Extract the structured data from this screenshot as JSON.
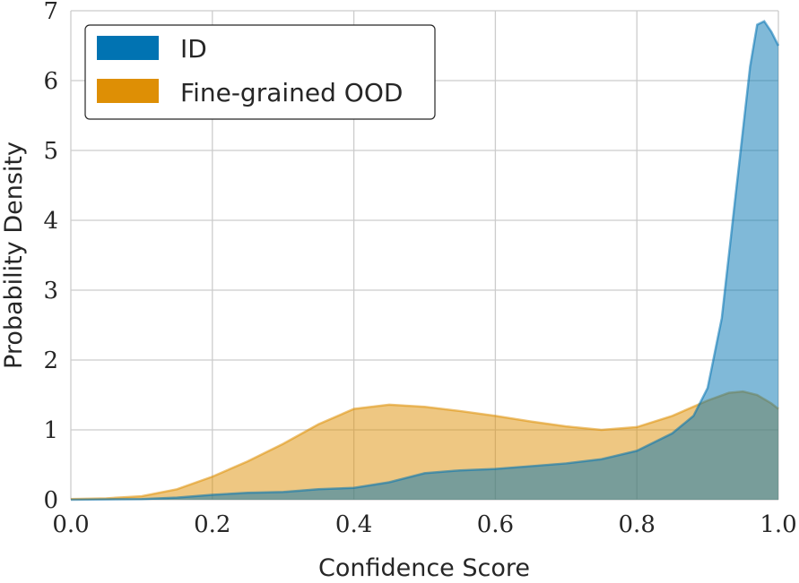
{
  "chart_data": {
    "type": "area",
    "title": "",
    "xlabel": "Confidence Score",
    "ylabel": "Probability Density",
    "xlim": [
      0.0,
      1.0
    ],
    "ylim": [
      0,
      7
    ],
    "xticks": [
      "0.0",
      "0.2",
      "0.4",
      "0.6",
      "0.8",
      "1.0"
    ],
    "yticks": [
      "0",
      "1",
      "2",
      "3",
      "4",
      "5",
      "6",
      "7"
    ],
    "grid": true,
    "legend_position": "top-left",
    "series": [
      {
        "name": "Fine-grained OOD",
        "color": "#de8f05",
        "x": [
          0.0,
          0.05,
          0.1,
          0.15,
          0.2,
          0.25,
          0.3,
          0.35,
          0.4,
          0.45,
          0.5,
          0.55,
          0.6,
          0.65,
          0.7,
          0.75,
          0.8,
          0.85,
          0.9,
          0.93,
          0.95,
          0.97,
          0.99,
          1.0
        ],
        "y": [
          0.01,
          0.02,
          0.05,
          0.15,
          0.33,
          0.55,
          0.8,
          1.08,
          1.3,
          1.36,
          1.33,
          1.27,
          1.2,
          1.12,
          1.05,
          1.0,
          1.04,
          1.2,
          1.42,
          1.53,
          1.55,
          1.5,
          1.38,
          1.3
        ]
      },
      {
        "name": "ID",
        "color": "#0173b2",
        "x": [
          0.0,
          0.1,
          0.15,
          0.2,
          0.25,
          0.3,
          0.35,
          0.4,
          0.45,
          0.5,
          0.55,
          0.6,
          0.65,
          0.7,
          0.75,
          0.8,
          0.85,
          0.88,
          0.9,
          0.92,
          0.94,
          0.96,
          0.97,
          0.98,
          0.99,
          1.0
        ],
        "y": [
          0.0,
          0.01,
          0.03,
          0.07,
          0.1,
          0.11,
          0.15,
          0.17,
          0.25,
          0.38,
          0.42,
          0.44,
          0.48,
          0.52,
          0.58,
          0.7,
          0.95,
          1.2,
          1.6,
          2.6,
          4.4,
          6.2,
          6.8,
          6.85,
          6.7,
          6.5
        ]
      }
    ]
  }
}
